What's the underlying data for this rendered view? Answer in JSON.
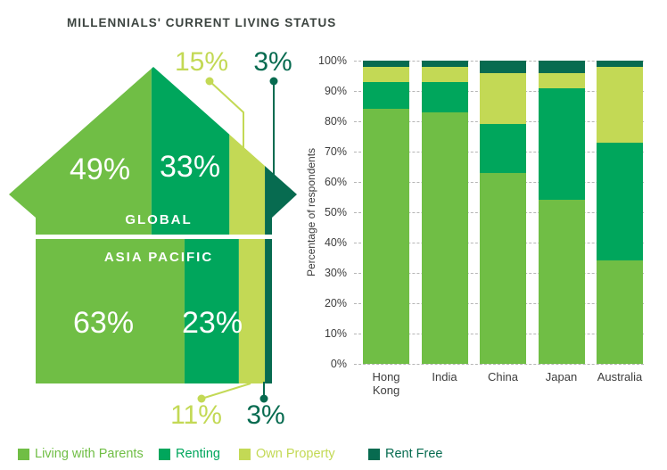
{
  "title": "MILLENNIALS' CURRENT LIVING STATUS",
  "colors": {
    "parents": "#70BE45",
    "renting": "#00A65C",
    "own": "#C3D955",
    "rentfree": "#076B50",
    "text": "#3C4440"
  },
  "house": {
    "global": {
      "label": "GLOBAL",
      "values": [
        49,
        33,
        15,
        3
      ],
      "labels": [
        "49%",
        "33%",
        "15%",
        "3%"
      ]
    },
    "asia_pacific": {
      "label": "ASIA PACIFIC",
      "values": [
        63,
        23,
        11,
        3
      ],
      "labels": [
        "63%",
        "23%",
        "11%",
        "3%"
      ]
    }
  },
  "chart_data": {
    "type": "bar",
    "subtype": "stacked-100-percent",
    "categories": [
      "Hong Kong",
      "India",
      "China",
      "Japan",
      "Australia"
    ],
    "series": [
      {
        "name": "Living with Parents",
        "color_key": "parents",
        "values": [
          84,
          83,
          63,
          54,
          34
        ]
      },
      {
        "name": "Renting",
        "color_key": "renting",
        "values": [
          9,
          10,
          16,
          37,
          39
        ]
      },
      {
        "name": "Own Property",
        "color_key": "own",
        "values": [
          5,
          5,
          17,
          5,
          25
        ]
      },
      {
        "name": "Rent Free",
        "color_key": "rentfree",
        "values": [
          2,
          2,
          4,
          4,
          2
        ]
      }
    ],
    "ylabel": "Percentage of respondents",
    "yticks": [
      "0%",
      "10%",
      "20%",
      "30%",
      "40%",
      "50%",
      "60%",
      "70%",
      "80%",
      "90%",
      "100%"
    ],
    "ylim": [
      0,
      100
    ],
    "grid": "horizontal-dashed",
    "legend_position": "bottom"
  },
  "legend": {
    "items": [
      {
        "label": "Living with Parents",
        "color": "#70BE45"
      },
      {
        "label": "Renting",
        "color": "#00A65C"
      },
      {
        "label": "Own Property",
        "color": "#C3D955"
      },
      {
        "label": "Rent Free",
        "color": "#076B50"
      }
    ]
  }
}
